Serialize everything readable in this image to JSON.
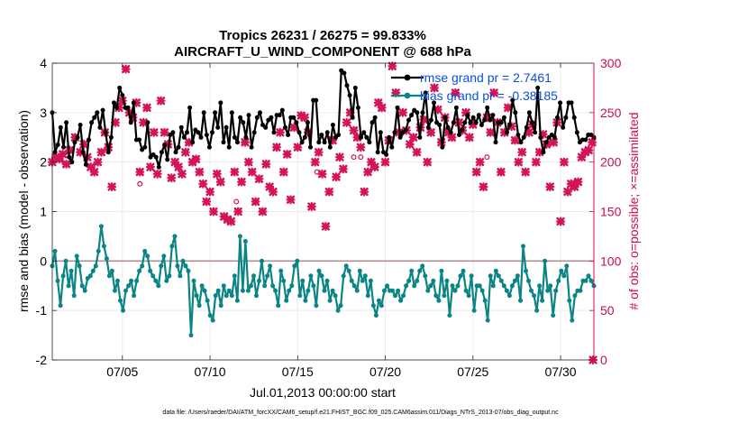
{
  "chart_data": {
    "type": "line",
    "title": "Tropics 26231 / 26275 = 99.833%",
    "subtitle": "AIRCRAFT_U_WIND_COMPONENT @ 688 hPa",
    "xlabel": "Jul.01,2013 00:00:00 start",
    "ylabel": "rmse and bias (model - observation)",
    "ylabel_right": "# of obs: o=possible; ×=assimilated",
    "footer": "data file: /Users/raeder/DAI/ATM_forcXX/CAM6_setup/f.e21.FHIST_BGC.f09_025.CAM6assim.011/Diags_NTrS_2013-07/obs_diag_output.nc",
    "xlim": [
      1,
      31.9
    ],
    "ylim": [
      -2,
      4
    ],
    "ylim_right": [
      0,
      300
    ],
    "x_ticks": [
      5,
      10,
      15,
      20,
      25,
      30
    ],
    "x_tick_labels": [
      "07/05",
      "07/10",
      "07/15",
      "07/20",
      "07/25",
      "07/30"
    ],
    "y_ticks": [
      -2,
      -1,
      0,
      1,
      2,
      3,
      4
    ],
    "y_tick_labels": [
      "-2",
      "-1",
      "0",
      "1",
      "2",
      "3",
      "4"
    ],
    "y_ticks_right": [
      0,
      50,
      100,
      150,
      200,
      250,
      300
    ],
    "y_tick_labels_right": [
      "0",
      "50",
      "100",
      "150",
      "200",
      "250",
      "300"
    ],
    "grid": true,
    "legend_position": "top-right",
    "colors": {
      "rmse": "#000000",
      "bias": "#0a8484",
      "obs": "#d4145a",
      "zero_line": "#b09090",
      "legend_text": "#0a4fe0",
      "right_axis": "#cc0a55"
    },
    "series": [
      {
        "name": "rmse",
        "legend": "rmse grand pr = 2.7461",
        "color": "#000000",
        "marker": "circle",
        "values": [
          3.0,
          2.2,
          2.35,
          2.7,
          2.3,
          2.8,
          2.1,
          2.0,
          2.4,
          2.5,
          2.75,
          2.2,
          1.95,
          2.45,
          2.8,
          2.9,
          3.0,
          2.7,
          3.05,
          2.6,
          2.2,
          2.5,
          3.2,
          3.1,
          3.5,
          3.35,
          3.1,
          3.1,
          2.8,
          3.2,
          2.45,
          2.45,
          2.25,
          2.3,
          2.8,
          2.1,
          2.15,
          2.1,
          1.9,
          2.2,
          2.35,
          2.05,
          2.55,
          2.6,
          2.2,
          2.3,
          2.7,
          2.5,
          2.6,
          3.1,
          2.4,
          2.65,
          2.6,
          2.5,
          3.0,
          2.55,
          2.3,
          2.6,
          3.0,
          2.7,
          3.2,
          2.4,
          2.7,
          2.3,
          3.0,
          2.5,
          2.4,
          2.9,
          2.8,
          2.5,
          2.95,
          2.3,
          2.6,
          2.9,
          3.0,
          2.75,
          2.7,
          2.85,
          2.9,
          2.6,
          2.95,
          2.95,
          3.05,
          2.7,
          2.55,
          2.9,
          2.9,
          2.8,
          2.6,
          2.4,
          2.5,
          2.8,
          2.3,
          3.25,
          3.25,
          2.4,
          2.55,
          2.4,
          2.6,
          2.3,
          2.75,
          2.5,
          2.55,
          3.85,
          3.8,
          3.55,
          3.35,
          2.9,
          3.5,
          3.1,
          2.5,
          2.6,
          2.5,
          2.4,
          2.8,
          2.9,
          2.2,
          2.6,
          2.2,
          2.15,
          2.5,
          2.3,
          2.6,
          3.1,
          2.5,
          2.6,
          2.65,
          2.85,
          2.95,
          3.05,
          3.0,
          2.5,
          3.0,
          3.4,
          2.7,
          2.85,
          3.2,
          2.8,
          2.75,
          2.3,
          2.9,
          2.7,
          2.6,
          2.8,
          3.1,
          2.55,
          2.65,
          2.8,
          2.95,
          2.8,
          2.9,
          2.8,
          2.95,
          2.75,
          2.85,
          3.1,
          2.85,
          2.95,
          2.4,
          2.8,
          2.8,
          2.9,
          2.6,
          2.75,
          3.25,
          3.0,
          2.55,
          2.4,
          2.5,
          2.7,
          3.0,
          2.8,
          2.6,
          3.5,
          2.5,
          2.2,
          2.4,
          2.5,
          2.55,
          2.5,
          2.9,
          3.2,
          2.7,
          2.9,
          3.2,
          3.2,
          2.9,
          2.6,
          2.4,
          2.45,
          2.45,
          2.55,
          2.55,
          2.5
        ]
      },
      {
        "name": "bias",
        "legend": "bias grand pr = -0.38185",
        "color": "#0a8484",
        "marker": "circle",
        "values": [
          -0.1,
          0.2,
          -0.4,
          -0.9,
          -0.3,
          0.0,
          -0.5,
          -0.2,
          -0.7,
          0.1,
          -0.1,
          -0.5,
          -0.6,
          -0.35,
          -0.3,
          -0.2,
          -0.1,
          0.2,
          0.7,
          0.3,
          0.05,
          -0.3,
          -0.2,
          -0.6,
          -0.4,
          -0.8,
          -1.0,
          -0.6,
          -0.5,
          -0.4,
          -0.7,
          -0.4,
          -0.2,
          -0.1,
          0.2,
          0.1,
          -0.2,
          -0.3,
          -0.4,
          -0.5,
          -0.1,
          0.1,
          -0.4,
          -0.3,
          0.3,
          0.5,
          -0.1,
          -0.3,
          0.0,
          -0.1,
          -0.2,
          -1.5,
          -0.4,
          -0.7,
          -0.9,
          -0.5,
          -0.6,
          -0.8,
          -1.1,
          -1.2,
          -0.7,
          -0.6,
          -0.9,
          -0.5,
          -0.7,
          -0.6,
          -0.7,
          -0.3,
          -0.8,
          0.5,
          -0.6,
          0.4,
          -0.6,
          -0.5,
          -0.3,
          -0.7,
          -0.4,
          0.0,
          -0.5,
          -0.3,
          -0.1,
          -0.5,
          -0.6,
          -0.9,
          -0.2,
          -0.4,
          -0.8,
          -0.6,
          -0.5,
          -0.1,
          0.0,
          -0.7,
          -0.4,
          -0.8,
          -0.6,
          -0.3,
          -0.5,
          -0.9,
          -0.2,
          -0.3,
          -0.6,
          -0.4,
          -0.8,
          -0.6,
          -0.7,
          -1.0,
          -0.9,
          -0.3,
          -0.1,
          -0.2,
          -0.4,
          -0.5,
          -0.6,
          -0.2,
          -0.4,
          -0.3,
          -0.7,
          -0.4,
          -0.9,
          -1.1,
          -0.8,
          -0.9,
          -0.6,
          -0.5,
          -0.6,
          -0.6,
          -0.7,
          -0.6,
          -0.8,
          -0.7,
          -0.5,
          -0.4,
          -0.2,
          -0.5,
          -0.4,
          -0.2,
          -0.1,
          -0.3,
          -0.6,
          -0.5,
          -0.4,
          -0.7,
          -0.8,
          -0.2,
          -0.7,
          -0.4,
          -1.1,
          -0.5,
          -0.6,
          -0.5,
          -0.3,
          -0.2,
          -0.6,
          -0.7,
          -0.3,
          -1.0,
          -0.5,
          -0.5,
          -0.6,
          -0.8,
          -1.2,
          -0.3,
          -0.5,
          -0.2,
          -0.3,
          -0.4,
          -0.5,
          -0.6,
          -0.7,
          -0.5,
          -0.4,
          -0.3,
          -0.8,
          0.3,
          -0.2,
          -0.4,
          -0.6,
          -0.7,
          -1.0,
          -0.5,
          -0.8,
          0.0,
          -0.6,
          -0.5,
          -1.1,
          -0.6,
          -0.4,
          -0.2,
          -0.3,
          -0.1,
          -0.8,
          -1.2,
          -0.7,
          -0.6,
          -0.6,
          -0.4,
          -0.4,
          -0.3,
          -0.4,
          -0.5
        ]
      }
    ],
    "obs_assimilated": [
      [
        1.0,
        200
      ],
      [
        1.2,
        205
      ],
      [
        1.4,
        203
      ],
      [
        1.6,
        208
      ],
      [
        1.8,
        198
      ],
      [
        2.0,
        212
      ],
      [
        2.3,
        225
      ],
      [
        2.6,
        210
      ],
      [
        2.8,
        218
      ],
      [
        3.0,
        205
      ],
      [
        3.2,
        195
      ],
      [
        3.4,
        190
      ],
      [
        3.6,
        200
      ],
      [
        3.8,
        210
      ],
      [
        4.0,
        230
      ],
      [
        4.2,
        215
      ],
      [
        4.4,
        175
      ],
      [
        4.6,
        240
      ],
      [
        4.8,
        255
      ],
      [
        5.0,
        262
      ],
      [
        5.2,
        294
      ],
      [
        5.4,
        250
      ],
      [
        5.6,
        245
      ],
      [
        5.8,
        260
      ],
      [
        6.0,
        190
      ],
      [
        6.2,
        240
      ],
      [
        6.4,
        255
      ],
      [
        6.6,
        195
      ],
      [
        6.8,
        230
      ],
      [
        7.0,
        188
      ],
      [
        7.2,
        262
      ],
      [
        7.4,
        230
      ],
      [
        7.6,
        218
      ],
      [
        7.8,
        184
      ],
      [
        8.0,
        200
      ],
      [
        8.2,
        195
      ],
      [
        8.4,
        188
      ],
      [
        8.6,
        210
      ],
      [
        8.8,
        220
      ],
      [
        9.0,
        200
      ],
      [
        9.2,
        203
      ],
      [
        9.4,
        190
      ],
      [
        9.6,
        178
      ],
      [
        9.8,
        160
      ],
      [
        10.0,
        170
      ],
      [
        10.2,
        150
      ],
      [
        10.4,
        188
      ],
      [
        10.6,
        180
      ],
      [
        10.8,
        145
      ],
      [
        11.0,
        142
      ],
      [
        11.2,
        140
      ],
      [
        11.4,
        190
      ],
      [
        11.6,
        150
      ],
      [
        11.8,
        180
      ],
      [
        12.0,
        220
      ],
      [
        12.2,
        200
      ],
      [
        12.4,
        190
      ],
      [
        12.6,
        160
      ],
      [
        12.8,
        183
      ],
      [
        13.0,
        150
      ],
      [
        13.2,
        198
      ],
      [
        13.4,
        175
      ],
      [
        13.6,
        170
      ],
      [
        13.8,
        215
      ],
      [
        14.0,
        230
      ],
      [
        14.2,
        190
      ],
      [
        14.4,
        208
      ],
      [
        14.6,
        162
      ],
      [
        14.8,
        235
      ],
      [
        15.0,
        215
      ],
      [
        15.2,
        247
      ],
      [
        15.4,
        245
      ],
      [
        15.6,
        230
      ],
      [
        15.8,
        155
      ],
      [
        16.0,
        200
      ],
      [
        16.2,
        210
      ],
      [
        16.4,
        188
      ],
      [
        16.6,
        135
      ],
      [
        16.8,
        170
      ],
      [
        17.0,
        222
      ],
      [
        17.2,
        185
      ],
      [
        17.4,
        205
      ],
      [
        17.6,
        193
      ],
      [
        17.8,
        240
      ],
      [
        18.0,
        250
      ],
      [
        18.2,
        232
      ],
      [
        18.4,
        225
      ],
      [
        18.6,
        215
      ],
      [
        18.8,
        170
      ],
      [
        19.0,
        190
      ],
      [
        19.2,
        200
      ],
      [
        19.4,
        195
      ],
      [
        19.6,
        260
      ],
      [
        19.8,
        255
      ],
      [
        20.0,
        200
      ],
      [
        20.2,
        222
      ],
      [
        20.4,
        297
      ],
      [
        20.6,
        270
      ],
      [
        20.8,
        230
      ],
      [
        21.0,
        250
      ],
      [
        21.2,
        232
      ],
      [
        21.4,
        218
      ],
      [
        21.6,
        225
      ],
      [
        21.8,
        210
      ],
      [
        22.0,
        235
      ],
      [
        22.2,
        243
      ],
      [
        22.4,
        200
      ],
      [
        22.6,
        230
      ],
      [
        22.8,
        275
      ],
      [
        23.0,
        253
      ],
      [
        23.2,
        220
      ],
      [
        23.4,
        245
      ],
      [
        23.6,
        230
      ],
      [
        23.8,
        225
      ],
      [
        24.0,
        270
      ],
      [
        24.2,
        240
      ],
      [
        24.4,
        232
      ],
      [
        24.6,
        250
      ],
      [
        24.8,
        225
      ],
      [
        25.0,
        238
      ],
      [
        25.2,
        190
      ],
      [
        25.4,
        200
      ],
      [
        25.6,
        175
      ],
      [
        25.8,
        245
      ],
      [
        26.0,
        230
      ],
      [
        26.2,
        270
      ],
      [
        26.4,
        240
      ],
      [
        26.6,
        190
      ],
      [
        26.8,
        230
      ],
      [
        27.0,
        255
      ],
      [
        27.2,
        236
      ],
      [
        27.4,
        222
      ],
      [
        27.6,
        200
      ],
      [
        27.8,
        210
      ],
      [
        28.0,
        190
      ],
      [
        28.2,
        230
      ],
      [
        28.4,
        238
      ],
      [
        28.6,
        200
      ],
      [
        28.8,
        210
      ],
      [
        29.0,
        228
      ],
      [
        29.2,
        218
      ],
      [
        29.4,
        175
      ],
      [
        29.6,
        220
      ],
      [
        29.8,
        240
      ],
      [
        30.0,
        140
      ],
      [
        30.2,
        200
      ],
      [
        30.4,
        170
      ],
      [
        30.6,
        178
      ],
      [
        30.8,
        175
      ],
      [
        31.0,
        180
      ],
      [
        31.2,
        205
      ],
      [
        31.4,
        210
      ],
      [
        31.6,
        212
      ],
      [
        31.8,
        220
      ],
      [
        31.85,
        0
      ]
    ],
    "obs_possible": [
      [
        6.0,
        178
      ],
      [
        11.5,
        160
      ],
      [
        16.1,
        190
      ],
      [
        18.2,
        205
      ],
      [
        18.6,
        205
      ],
      [
        25.8,
        205
      ]
    ]
  }
}
